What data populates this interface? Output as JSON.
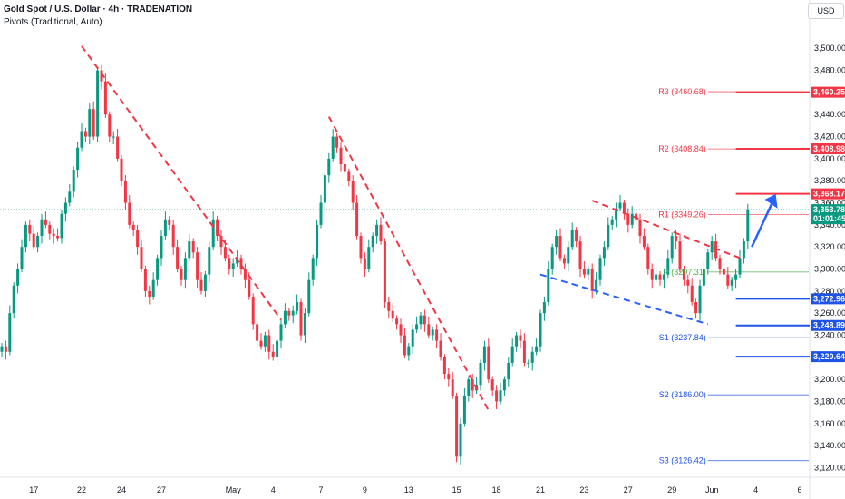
{
  "header": {
    "title": "Gold Spot / U.S. Dollar · 4h · TRADENATION",
    "subtitle": "Pivots (Traditional, Auto)",
    "currency_button": "USD"
  },
  "colors": {
    "up": "#089981",
    "down": "#f23645",
    "resistance": "#f23645",
    "support": "#1e53e5",
    "pivot": "#4caf50",
    "trend_down": "#f23645",
    "trend_up": "#2962ff",
    "arrow": "#2962ff",
    "price_line": "#089981"
  },
  "chart_data": {
    "type": "candlestick",
    "symbol": "XAUUSD",
    "timeframe": "4h",
    "ylim": [
      3113,
      3515
    ],
    "y_ticks": [
      3120,
      3140,
      3160,
      3180,
      3200,
      3220,
      3240,
      3260,
      3280,
      3300,
      3320,
      3340,
      3360,
      3380,
      3400,
      3420,
      3440,
      3460,
      3480,
      3500
    ],
    "y_tick_labels": [
      "3,120.00",
      "3,140.00",
      "3,160.00",
      "3,180.00",
      "3,200.00",
      "3,220.00",
      "3,240.00",
      "3,260.00",
      "3,280.00",
      "3,300.00",
      "3,320.00",
      "3,340.00",
      "3,360.00",
      "3,380.00",
      "3,400.00",
      "3,420.00",
      "3,440.00",
      "3,460.00",
      "3,480.00",
      "3,500.00"
    ],
    "x_ticks": [
      {
        "label": "17",
        "bar": 8
      },
      {
        "label": "22",
        "bar": 20
      },
      {
        "label": "24",
        "bar": 30
      },
      {
        "label": "27",
        "bar": 40
      },
      {
        "label": "May",
        "bar": 58
      },
      {
        "label": "4",
        "bar": 68
      },
      {
        "label": "7",
        "bar": 80
      },
      {
        "label": "9",
        "bar": 91
      },
      {
        "label": "13",
        "bar": 102
      },
      {
        "label": "15",
        "bar": 114
      },
      {
        "label": "18",
        "bar": 124
      },
      {
        "label": "21",
        "bar": 135
      },
      {
        "label": "23",
        "bar": 146
      },
      {
        "label": "27",
        "bar": 157
      },
      {
        "label": "29",
        "bar": 168
      },
      {
        "label": "Jun",
        "bar": 178
      },
      {
        "label": "4",
        "bar": 189
      },
      {
        "label": "6",
        "bar": 200
      }
    ],
    "closes": [
      3230,
      3225,
      3260,
      3285,
      3300,
      3320,
      3340,
      3332,
      3320,
      3330,
      3345,
      3340,
      3332,
      3330,
      3328,
      3350,
      3360,
      3370,
      3390,
      3410,
      3425,
      3420,
      3445,
      3420,
      3480,
      3470,
      3440,
      3420,
      3420,
      3400,
      3380,
      3360,
      3340,
      3335,
      3320,
      3300,
      3280,
      3275,
      3290,
      3310,
      3330,
      3345,
      3340,
      3320,
      3300,
      3290,
      3310,
      3325,
      3315,
      3290,
      3280,
      3295,
      3320,
      3345,
      3330,
      3320,
      3310,
      3300,
      3305,
      3310,
      3300,
      3290,
      3275,
      3250,
      3235,
      3230,
      3240,
      3225,
      3220,
      3235,
      3250,
      3262,
      3258,
      3262,
      3270,
      3240,
      3260,
      3290,
      3310,
      3340,
      3360,
      3385,
      3400,
      3420,
      3410,
      3395,
      3388,
      3380,
      3360,
      3330,
      3310,
      3300,
      3320,
      3330,
      3340,
      3325,
      3270,
      3262,
      3255,
      3250,
      3240,
      3222,
      3230,
      3245,
      3250,
      3258,
      3250,
      3240,
      3245,
      3235,
      3220,
      3205,
      3200,
      3185,
      3130,
      3160,
      3185,
      3200,
      3190,
      3195,
      3215,
      3230,
      3200,
      3190,
      3180,
      3190,
      3200,
      3215,
      3230,
      3240,
      3235,
      3215,
      3215,
      3225,
      3230,
      3260,
      3270,
      3300,
      3320,
      3330,
      3310,
      3305,
      3320,
      3335,
      3325,
      3300,
      3295,
      3300,
      3280,
      3290,
      3310,
      3320,
      3340,
      3345,
      3355,
      3360,
      3350,
      3340,
      3350,
      3345,
      3330,
      3320,
      3300,
      3290,
      3295,
      3290,
      3295,
      3310,
      3330,
      3325,
      3300,
      3290,
      3285,
      3270,
      3260,
      3285,
      3300,
      3315,
      3325,
      3310,
      3300,
      3295,
      3285,
      3290,
      3295,
      3310,
      3325,
      3354
    ],
    "current_price": 3353.78,
    "countdown": "01:01:45",
    "pivots": [
      {
        "label": "R3 (3460.68)",
        "value": 3460.68
      },
      {
        "label": "R2 (3408.84)",
        "value": 3408.84
      },
      {
        "label": "R1 (3349.26)",
        "value": 3349.26
      },
      {
        "label": "P (3297.31)",
        "value": 3297.31
      },
      {
        "label": "S1 (3237.84)",
        "value": 3237.84
      },
      {
        "label": "S2 (3186.00)",
        "value": 3186.0
      },
      {
        "label": "S3 (3126.42)",
        "value": 3126.42
      }
    ],
    "price_tags": [
      {
        "label": "3,460.25",
        "value": 3460.25,
        "color": "resistance"
      },
      {
        "label": "3,408.98",
        "value": 3408.98,
        "color": "resistance"
      },
      {
        "label": "3,368.17",
        "value": 3368.17,
        "color": "resistance"
      },
      {
        "label": "3,272.96",
        "value": 3272.96,
        "color": "support"
      },
      {
        "label": "3,248.89",
        "value": 3248.89,
        "color": "support"
      },
      {
        "label": "3,220.64",
        "value": 3220.64,
        "color": "support"
      }
    ],
    "horizontal_levels": [
      {
        "value": 3460.25,
        "from_bar": 184,
        "color": "resistance"
      },
      {
        "value": 3408.98,
        "from_bar": 184,
        "color": "resistance"
      },
      {
        "value": 3368.17,
        "from_bar": 184,
        "color": "resistance"
      },
      {
        "value": 3272.96,
        "from_bar": 184,
        "color": "support"
      },
      {
        "value": 3248.89,
        "from_bar": 184,
        "color": "support"
      },
      {
        "value": 3220.64,
        "from_bar": 184,
        "color": "support"
      }
    ],
    "trend_lines": [
      {
        "from_bar": 20,
        "from_value": 3502,
        "to_bar": 70,
        "to_value": 3254,
        "color": "trend_down"
      },
      {
        "from_bar": 82,
        "from_value": 3438,
        "to_bar": 122,
        "to_value": 3172,
        "color": "trend_down"
      },
      {
        "from_bar": 148,
        "from_value": 3362,
        "to_bar": 185,
        "to_value": 3310,
        "color": "trend_down"
      },
      {
        "from_bar": 135,
        "from_value": 3295,
        "to_bar": 177,
        "to_value": 3250,
        "color": "trend_up"
      }
    ],
    "arrow": {
      "from_bar": 188,
      "from_value": 3320,
      "to_bar": 194,
      "to_value": 3368
    }
  }
}
